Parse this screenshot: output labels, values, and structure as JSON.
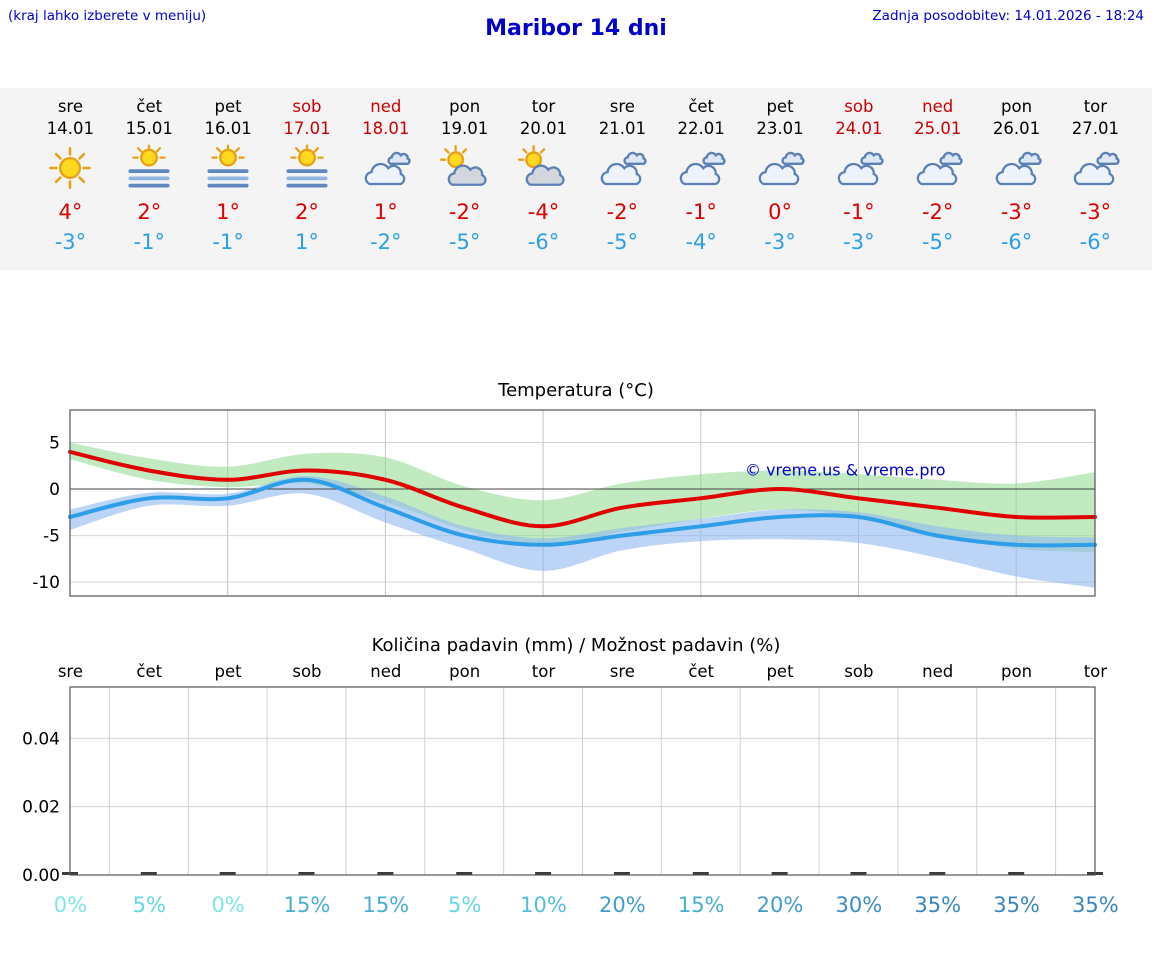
{
  "header": {
    "note": "(kraj lahko izberete v meniju)",
    "title": "Maribor 14 dni",
    "updated": "Zadnja posodobitev: 14.01.2026 - 18:24"
  },
  "colors": {
    "accent_blue": "#0000cc",
    "temp_max_red": "#dd0000",
    "temp_min_blue": "#2b9fe8",
    "weekend_red": "#cc0000",
    "strip_background": "#f4f4f4"
  },
  "days": [
    {
      "name": "sre",
      "date": "14.01",
      "weekend": false,
      "icon": "sun-icon",
      "tmax": "4°",
      "tmin": "-3°"
    },
    {
      "name": "čet",
      "date": "15.01",
      "weekend": false,
      "icon": "sun-fog-icon",
      "tmax": "2°",
      "tmin": "-1°"
    },
    {
      "name": "pet",
      "date": "16.01",
      "weekend": false,
      "icon": "sun-fog-icon",
      "tmax": "1°",
      "tmin": "-1°"
    },
    {
      "name": "sob",
      "date": "17.01",
      "weekend": true,
      "icon": "sun-fog-icon",
      "tmax": "2°",
      "tmin": "1°"
    },
    {
      "name": "ned",
      "date": "18.01",
      "weekend": true,
      "icon": "cloudy-icon",
      "tmax": "1°",
      "tmin": "-2°"
    },
    {
      "name": "pon",
      "date": "19.01",
      "weekend": false,
      "icon": "sun-cloud-icon",
      "tmax": "-2°",
      "tmin": "-5°"
    },
    {
      "name": "tor",
      "date": "20.01",
      "weekend": false,
      "icon": "sun-cloud-icon",
      "tmax": "-4°",
      "tmin": "-6°"
    },
    {
      "name": "sre",
      "date": "21.01",
      "weekend": false,
      "icon": "cloudy-icon",
      "tmax": "-2°",
      "tmin": "-5°"
    },
    {
      "name": "čet",
      "date": "22.01",
      "weekend": false,
      "icon": "cloudy-icon",
      "tmax": "-1°",
      "tmin": "-4°"
    },
    {
      "name": "pet",
      "date": "23.01",
      "weekend": false,
      "icon": "cloudy-icon",
      "tmax": "0°",
      "tmin": "-3°"
    },
    {
      "name": "sob",
      "date": "24.01",
      "weekend": true,
      "icon": "cloudy-icon",
      "tmax": "-1°",
      "tmin": "-3°"
    },
    {
      "name": "ned",
      "date": "25.01",
      "weekend": true,
      "icon": "cloudy-icon",
      "tmax": "-2°",
      "tmin": "-5°"
    },
    {
      "name": "pon",
      "date": "26.01",
      "weekend": false,
      "icon": "cloudy-icon",
      "tmax": "-3°",
      "tmin": "-6°"
    },
    {
      "name": "tor",
      "date": "27.01",
      "weekend": false,
      "icon": "cloudy-icon",
      "tmax": "-3°",
      "tmin": "-6°"
    }
  ],
  "chart_data": [
    {
      "type": "line",
      "title": "Temperatura (°C)",
      "watermark": "© vreme.us & vreme.pro",
      "x_labels": [
        "14.01",
        "15.01",
        "16.01",
        "17.01",
        "18.01",
        "19.01",
        "20.01",
        "21.01",
        "22.01",
        "23.01",
        "24.01",
        "25.01",
        "26.01",
        "27.01"
      ],
      "yticks": [
        5,
        0,
        -5,
        -10
      ],
      "ylim": [
        -11.5,
        8.5
      ],
      "grid": "on",
      "series": [
        {
          "name": "temp-max",
          "color": "#e00000",
          "values": [
            4,
            2,
            1,
            2,
            1,
            -2,
            -4,
            -2,
            -1,
            0,
            -1,
            -2,
            -3,
            -3
          ]
        },
        {
          "name": "temp-min",
          "color": "#2f9ee8",
          "values": [
            -3,
            -1,
            -1,
            1,
            -2,
            -5,
            -6,
            -5,
            -4,
            -3,
            -3,
            -5,
            -6,
            -6
          ]
        }
      ],
      "bands": [
        {
          "name": "temp-max-range",
          "color": "#8ed88e",
          "opacity": 0.55,
          "upper": [
            5,
            3.3,
            2.4,
            3.8,
            3.4,
            0.3,
            -1.2,
            0.6,
            1.6,
            2.0,
            1.6,
            1.0,
            0.6,
            1.8
          ],
          "lower": [
            3.2,
            1.0,
            0.2,
            0.6,
            -1.4,
            -4.4,
            -6.0,
            -4.6,
            -3.2,
            -2.2,
            -3.0,
            -5.0,
            -6.4,
            -6.8
          ]
        },
        {
          "name": "temp-min-range",
          "color": "#8fb8ee",
          "opacity": 0.6,
          "upper": [
            -2.2,
            -0.4,
            -0.5,
            1.4,
            -0.8,
            -4.0,
            -5.3,
            -4.2,
            -3.2,
            -2.2,
            -2.5,
            -4.0,
            -5.0,
            -5.2
          ],
          "lower": [
            -4.4,
            -1.8,
            -1.8,
            -0.5,
            -3.6,
            -6.4,
            -8.8,
            -6.6,
            -5.6,
            -5.4,
            -5.8,
            -7.4,
            -9.4,
            -10.6
          ]
        }
      ]
    },
    {
      "type": "bar",
      "title": "Količina padavin (mm) / Možnost padavin (%)",
      "categories": [
        "sre",
        "čet",
        "pet",
        "sob",
        "ned",
        "pon",
        "tor",
        "sre",
        "čet",
        "pet",
        "sob",
        "ned",
        "pon",
        "tor"
      ],
      "values": [
        0,
        0,
        0,
        0,
        0,
        0,
        0,
        0,
        0,
        0,
        0,
        0,
        0,
        0
      ],
      "yticks": [
        "0.00",
        "0.02",
        "0.04"
      ],
      "ylim": [
        0,
        0.055
      ],
      "grid": "on",
      "probabilities": [
        {
          "label": "0%",
          "color": "#7fe6e6"
        },
        {
          "label": "5%",
          "color": "#63d8e0"
        },
        {
          "label": "0%",
          "color": "#7fe6e6"
        },
        {
          "label": "15%",
          "color": "#47aed6"
        },
        {
          "label": "15%",
          "color": "#47aed6"
        },
        {
          "label": "5%",
          "color": "#63d8e0"
        },
        {
          "label": "10%",
          "color": "#52c0db"
        },
        {
          "label": "20%",
          "color": "#409dce"
        },
        {
          "label": "15%",
          "color": "#47aed6"
        },
        {
          "label": "20%",
          "color": "#409dce"
        },
        {
          "label": "30%",
          "color": "#3a8cc4"
        },
        {
          "label": "35%",
          "color": "#3786bf"
        },
        {
          "label": "35%",
          "color": "#3786bf"
        },
        {
          "label": "35%",
          "color": "#3786bf"
        }
      ]
    }
  ]
}
